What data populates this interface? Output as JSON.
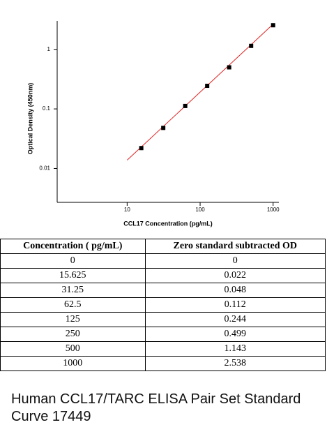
{
  "chart_data": {
    "type": "scatter",
    "x_label": "CCL17 Concentration (pg/mL)",
    "y_label": "Optical Density (450nm)",
    "log_x": true,
    "log_y": true,
    "xlim": [
      1.1,
      1200
    ],
    "ylim": [
      0.0027,
      3
    ],
    "xticks": [
      10,
      100,
      1000
    ],
    "yticks": [
      0.01,
      0.1,
      1
    ],
    "series": [
      {
        "color": "#000000",
        "marker": "square",
        "x": [
          15.625,
          31.25,
          62.5,
          125,
          250,
          500,
          1000
        ],
        "values": [
          0.022,
          0.048,
          0.112,
          0.244,
          0.499,
          1.143,
          2.538
        ]
      },
      {
        "color": "#e02020",
        "marker": "line",
        "x": [
          10,
          1000
        ],
        "values": [
          0.0138,
          2.65
        ]
      }
    ]
  },
  "table": {
    "header": [
      "Concentration ( pg/mL)",
      "Zero standard subtracted OD"
    ],
    "rows": [
      [
        "0",
        "0"
      ],
      [
        "15.625",
        "0.022"
      ],
      [
        "31.25",
        "0.048"
      ],
      [
        "62.5",
        "0.112"
      ],
      [
        "125",
        "0.244"
      ],
      [
        "250",
        "0.499"
      ],
      [
        "500",
        "1.143"
      ],
      [
        "1000",
        "2.538"
      ]
    ]
  },
  "caption": "Human CCL17/TARC ELISA Pair Set Standard Curve 17449"
}
